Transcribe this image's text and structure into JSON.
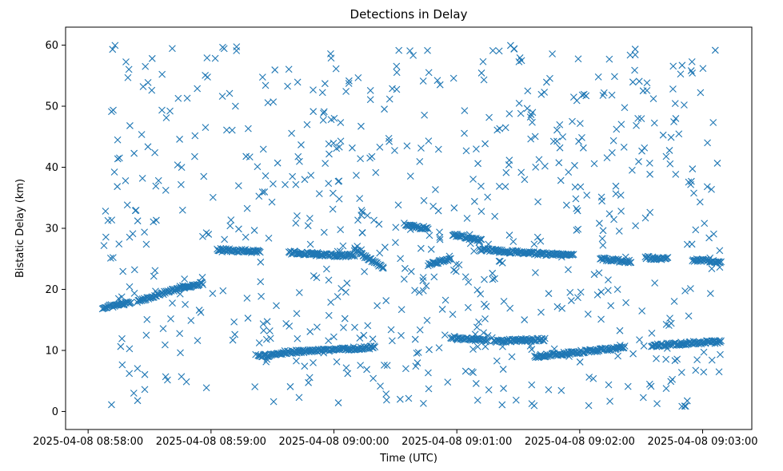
{
  "chart_data": {
    "type": "scatter",
    "title": "Detections in Delay",
    "xlabel": "Time (UTC)",
    "ylabel": "Bistatic Delay (km)",
    "marker": "x",
    "color": "#1f77b4",
    "grid": false,
    "legend": "none",
    "xlim": [
      "2025-04-08 08:57:49",
      "2025-04-08 09:03:24"
    ],
    "ylim": [
      -2.95,
      62.95
    ],
    "x_ticks": [
      "2025-04-08 08:58:00",
      "2025-04-08 08:59:00",
      "2025-04-08 09:00:00",
      "2025-04-08 09:01:00",
      "2025-04-08 09:02:00",
      "2025-04-08 09:03:00"
    ],
    "y_ticks": [
      0,
      10,
      20,
      30,
      40,
      50,
      60
    ],
    "time_start": "2025-04-08 08:58:07",
    "time_end": "2025-04-08 09:03:09",
    "tracks": [
      {
        "from": [
          "2025-04-08 08:58:07",
          17.0
        ],
        "to": [
          "2025-04-08 08:58:21",
          17.9
        ]
      },
      {
        "from": [
          "2025-04-08 08:58:24",
          18.0
        ],
        "to": [
          "2025-04-08 08:58:47",
          20.5
        ]
      },
      {
        "from": [
          "2025-04-08 08:58:47",
          20.3
        ],
        "to": [
          "2025-04-08 08:58:56",
          21.0
        ]
      },
      {
        "from": [
          "2025-04-08 08:59:03",
          26.5
        ],
        "to": [
          "2025-04-08 08:59:24",
          26.2
        ]
      },
      {
        "from": [
          "2025-04-08 08:59:38",
          26.0
        ],
        "to": [
          "2025-04-08 08:59:52",
          25.8
        ]
      },
      {
        "from": [
          "2025-04-08 08:59:50",
          25.7
        ],
        "to": [
          "2025-04-08 09:00:10",
          25.5
        ]
      },
      {
        "from": [
          "2025-04-08 09:00:10",
          26.5
        ],
        "to": [
          "2025-04-08 09:00:24",
          23.5
        ]
      },
      {
        "from": [
          "2025-04-08 09:00:35",
          30.5
        ],
        "to": [
          "2025-04-08 09:00:46",
          30.0
        ]
      },
      {
        "from": [
          "2025-04-08 09:00:46",
          24.0
        ],
        "to": [
          "2025-04-08 09:00:57",
          25.0
        ]
      },
      {
        "from": [
          "2025-04-08 09:00:58",
          29.0
        ],
        "to": [
          "2025-04-08 09:01:12",
          28.0
        ]
      },
      {
        "from": [
          "2025-04-08 09:01:11",
          26.5
        ],
        "to": [
          "2025-04-08 09:01:57",
          25.5
        ]
      },
      {
        "from": [
          "2025-04-08 09:02:10",
          25.0
        ],
        "to": [
          "2025-04-08 09:02:25",
          24.5
        ]
      },
      {
        "from": [
          "2025-04-08 09:02:32",
          25.2
        ],
        "to": [
          "2025-04-08 09:02:43",
          25.0
        ]
      },
      {
        "from": [
          "2025-04-08 09:02:55",
          24.8
        ],
        "to": [
          "2025-04-08 09:03:09",
          24.5
        ]
      },
      {
        "from": [
          "2025-04-08 08:59:23",
          9.0
        ],
        "to": [
          "2025-04-08 08:59:36",
          9.5
        ]
      },
      {
        "from": [
          "2025-04-08 08:59:36",
          9.7
        ],
        "to": [
          "2025-04-08 09:00:07",
          10.2
        ]
      },
      {
        "from": [
          "2025-04-08 09:00:07",
          10.3
        ],
        "to": [
          "2025-04-08 09:00:20",
          10.5
        ]
      },
      {
        "from": [
          "2025-04-08 09:00:57",
          12.2
        ],
        "to": [
          "2025-04-08 09:01:15",
          11.5
        ]
      },
      {
        "from": [
          "2025-04-08 09:01:18",
          11.5
        ],
        "to": [
          "2025-04-08 09:01:43",
          11.8
        ]
      },
      {
        "from": [
          "2025-04-08 09:01:38",
          9.0
        ],
        "to": [
          "2025-04-08 09:02:22",
          10.5
        ]
      },
      {
        "from": [
          "2025-04-08 09:02:35",
          10.8
        ],
        "to": [
          "2025-04-08 09:03:09",
          11.5
        ]
      }
    ]
  }
}
